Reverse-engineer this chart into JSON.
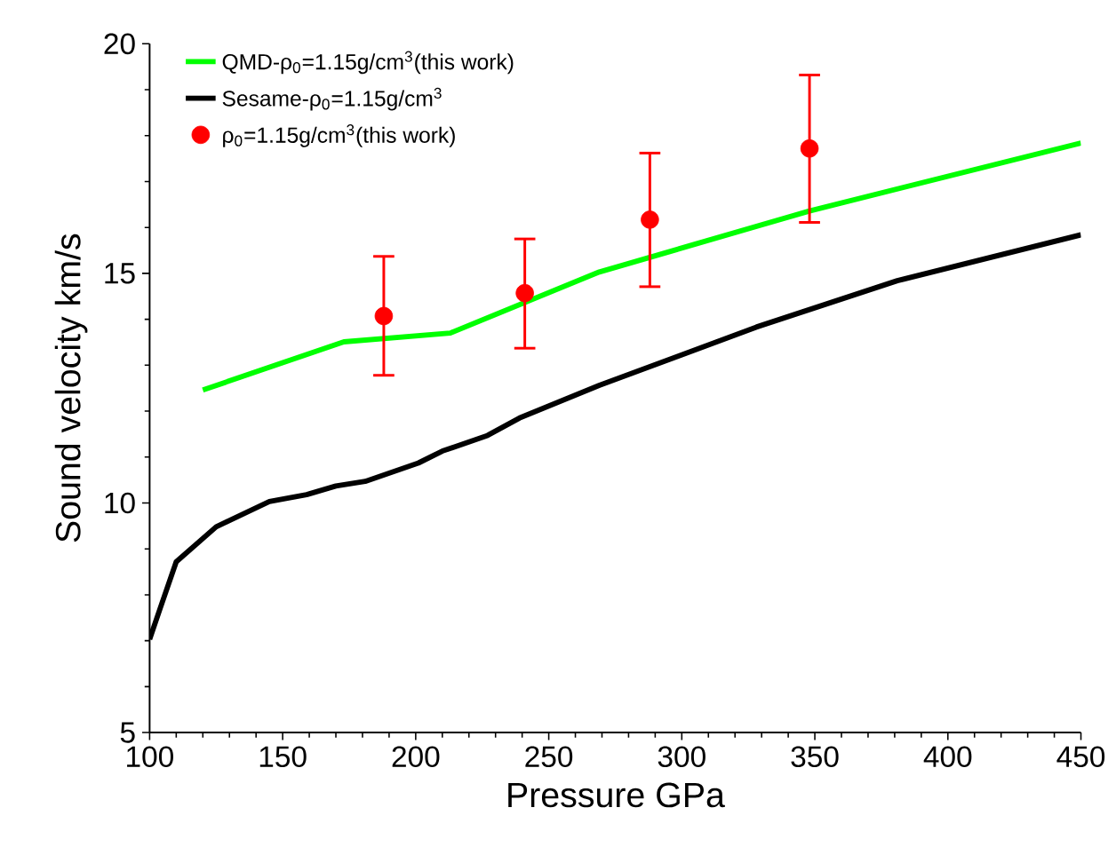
{
  "chart_data": {
    "type": "line",
    "xlabel": "Pressure GPa",
    "ylabel": "Sound velocity km/s",
    "xlim": [
      100,
      450
    ],
    "ylim": [
      5,
      20
    ],
    "xticks": [
      100,
      150,
      200,
      250,
      300,
      350,
      400,
      450
    ],
    "yticks": [
      5,
      10,
      15,
      20
    ],
    "grid": false,
    "legend": "top left",
    "series": [
      {
        "name": "QMD-ρ$_{0}$=1.15g/cm$^{3}$(this work)",
        "color": "#00ff00",
        "x": [
          120,
          173,
          213,
          269,
          348,
          450
        ],
        "values": [
          12.46,
          13.51,
          13.7,
          15.03,
          16.36,
          17.84
        ]
      },
      {
        "name": "Sesame-ρ$_{0}$=1.15g/cm$^{3}$",
        "color": "#000000",
        "x": [
          100,
          104,
          110,
          125,
          145,
          159,
          170,
          181,
          201,
          210,
          227,
          239,
          269,
          328,
          381,
          450
        ],
        "values": [
          7.03,
          7.71,
          8.72,
          9.48,
          10.03,
          10.18,
          10.37,
          10.47,
          10.87,
          11.13,
          11.47,
          11.85,
          12.56,
          13.83,
          14.84,
          15.84
        ]
      },
      {
        "name": "ρ$_{0}$=1.15g/cm$^{3}$(this work)",
        "type": "scatter",
        "color": "#ff0000",
        "x": [
          188,
          241,
          288,
          348
        ],
        "values": [
          14.07,
          14.57,
          16.17,
          17.72
        ],
        "errors": [
          [
            12.78,
            15.37
          ],
          [
            13.37,
            15.75
          ],
          [
            14.71,
            17.62
          ],
          [
            16.11,
            19.32
          ]
        ]
      }
    ]
  }
}
